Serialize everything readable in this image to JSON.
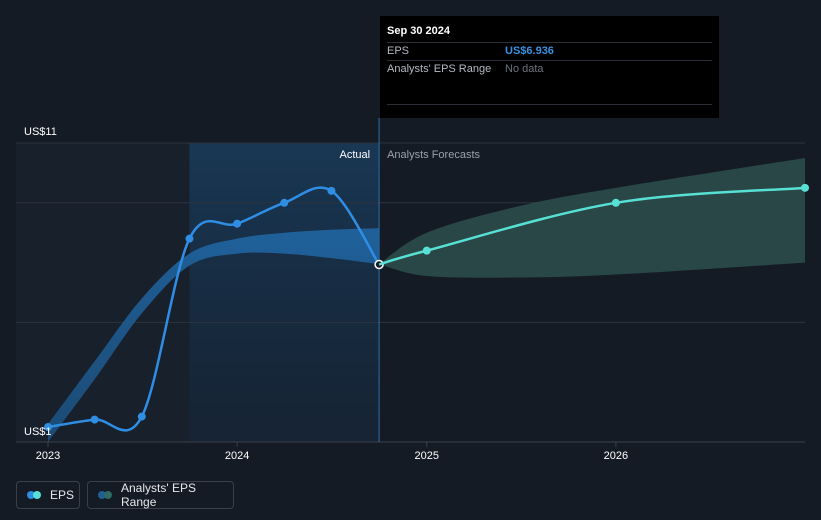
{
  "chart_data": {
    "type": "line",
    "y_axis": {
      "labels": [
        "US$11",
        "US$1"
      ],
      "top_value": 11,
      "bottom_value": 1
    },
    "x_axis": {
      "ticks": [
        "2023",
        "2024",
        "2025",
        "2026"
      ]
    },
    "region_labels": {
      "actual": "Actual",
      "forecast": "Analysts Forecasts"
    },
    "series": [
      {
        "name": "EPS",
        "kind": "actual",
        "color": "#2f8ee3",
        "points": [
          {
            "x": "2022-12-31",
            "y": 1.5
          },
          {
            "x": "2023-03-31",
            "y": 1.75
          },
          {
            "x": "2023-06-30",
            "y": 1.85
          },
          {
            "x": "2023-09-30",
            "y": 7.8
          },
          {
            "x": "2023-12-31",
            "y": 8.3
          },
          {
            "x": "2024-03-31",
            "y": 9.0
          },
          {
            "x": "2024-06-30",
            "y": 9.4
          },
          {
            "x": "2024-09-30",
            "y": 6.936
          }
        ]
      },
      {
        "name": "EPS",
        "kind": "forecast",
        "color": "#58e0d4",
        "points": [
          {
            "x": "2024-09-30",
            "y": 6.936
          },
          {
            "x": "2024-12-31",
            "y": 7.4
          },
          {
            "x": "2025-12-31",
            "y": 9.0
          },
          {
            "x": "2026-12-31",
            "y": 9.5
          }
        ]
      }
    ],
    "ranges": [
      {
        "name": "Analysts' EPS Range",
        "kind": "past",
        "color": "#1f5f94",
        "upper": [
          {
            "x": "2022-12-31",
            "y": 1.6
          },
          {
            "x": "2023-03-31",
            "y": 3.7
          },
          {
            "x": "2023-06-30",
            "y": 5.8
          },
          {
            "x": "2023-09-30",
            "y": 7.3
          },
          {
            "x": "2023-12-31",
            "y": 7.8
          },
          {
            "x": "2024-03-31",
            "y": 8.0
          },
          {
            "x": "2024-06-30",
            "y": 8.1
          },
          {
            "x": "2024-09-30",
            "y": 8.15
          }
        ],
        "lower": [
          {
            "x": "2022-12-31",
            "y": 1.0
          },
          {
            "x": "2023-03-31",
            "y": 3.1
          },
          {
            "x": "2023-06-30",
            "y": 5.3
          },
          {
            "x": "2023-09-30",
            "y": 6.9
          },
          {
            "x": "2023-12-31",
            "y": 7.3
          },
          {
            "x": "2024-03-31",
            "y": 7.3
          },
          {
            "x": "2024-06-30",
            "y": 7.15
          },
          {
            "x": "2024-09-30",
            "y": 6.95
          }
        ]
      },
      {
        "name": "Analysts' EPS Range",
        "kind": "forecast",
        "color": "#2b4f4c",
        "upper": [
          {
            "x": "2024-09-30",
            "y": 6.95
          },
          {
            "x": "2024-12-31",
            "y": 8.0
          },
          {
            "x": "2025-06-30",
            "y": 8.9
          },
          {
            "x": "2025-12-31",
            "y": 9.5
          },
          {
            "x": "2026-12-31",
            "y": 10.5
          }
        ],
        "lower": [
          {
            "x": "2024-09-30",
            "y": 6.95
          },
          {
            "x": "2024-12-31",
            "y": 6.55
          },
          {
            "x": "2025-06-30",
            "y": 6.5
          },
          {
            "x": "2025-12-31",
            "y": 6.6
          },
          {
            "x": "2026-12-31",
            "y": 7.0
          }
        ]
      }
    ],
    "x_range": [
      "2022-12-31",
      "2026-12-31"
    ],
    "y_range": [
      1,
      11
    ],
    "highlight": {
      "from": "2023-09-30",
      "to": "2024-09-30"
    },
    "grid": true,
    "legend_position": "bottom-left"
  },
  "tooltip": {
    "date": "Sep 30 2024",
    "rows": [
      {
        "label": "EPS",
        "value": "US$6.936"
      },
      {
        "label": "Analysts' EPS Range",
        "value": "No data"
      }
    ]
  },
  "legend": {
    "items": [
      {
        "label": "EPS"
      },
      {
        "label": "Analysts' EPS Range"
      }
    ]
  }
}
